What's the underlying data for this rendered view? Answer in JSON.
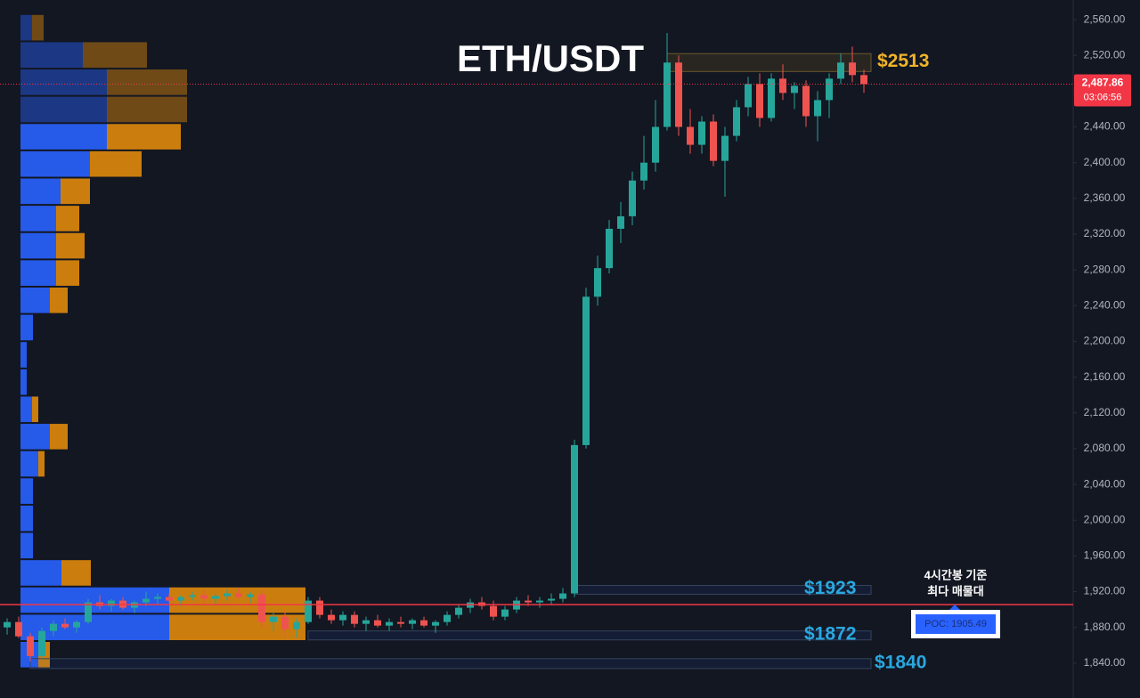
{
  "chart_data": {
    "type": "candlestick",
    "title": "ETH/USDT",
    "up_color": "#26a69a",
    "down_color": "#ef5350",
    "ylim": [
      1801,
      2582
    ],
    "yticks": [
      {
        "value": 1840,
        "label": "1,840.00"
      },
      {
        "value": 1880,
        "label": "1,880.00"
      },
      {
        "value": 1920,
        "label": "1,920.00"
      },
      {
        "value": 1960,
        "label": "1,960.00"
      },
      {
        "value": 2000,
        "label": "2,000.00"
      },
      {
        "value": 2040,
        "label": "2,040.00"
      },
      {
        "value": 2080,
        "label": "2,080.00"
      },
      {
        "value": 2120,
        "label": "2,120.00"
      },
      {
        "value": 2160,
        "label": "2,160.00"
      },
      {
        "value": 2200,
        "label": "2,200.00"
      },
      {
        "value": 2240,
        "label": "2,240.00"
      },
      {
        "value": 2280,
        "label": "2,280.00"
      },
      {
        "value": 2320,
        "label": "2,320.00"
      },
      {
        "value": 2360,
        "label": "2,360.00"
      },
      {
        "value": 2400,
        "label": "2,400.00"
      },
      {
        "value": 2440,
        "label": "2,440.00"
      },
      {
        "value": 2480,
        "label": "2,480.00"
      },
      {
        "value": 2520,
        "label": "2,520.00"
      },
      {
        "value": 2560,
        "label": "2,560.00"
      }
    ],
    "grid": false,
    "ohlc": [
      [
        1880,
        1890,
        1872,
        1886
      ],
      [
        1886,
        1892,
        1868,
        1870
      ],
      [
        1870,
        1874,
        1842,
        1848
      ],
      [
        1848,
        1880,
        1845,
        1876
      ],
      [
        1876,
        1888,
        1870,
        1884
      ],
      [
        1884,
        1890,
        1878,
        1880
      ],
      [
        1880,
        1888,
        1874,
        1886
      ],
      [
        1886,
        1912,
        1884,
        1908
      ],
      [
        1908,
        1916,
        1900,
        1904
      ],
      [
        1904,
        1912,
        1898,
        1910
      ],
      [
        1910,
        1914,
        1900,
        1902
      ],
      [
        1902,
        1910,
        1896,
        1908
      ],
      [
        1908,
        1920,
        1904,
        1912
      ],
      [
        1912,
        1918,
        1906,
        1914
      ],
      [
        1914,
        1918,
        1908,
        1910
      ],
      [
        1910,
        1916,
        1904,
        1914
      ],
      [
        1914,
        1920,
        1910,
        1916
      ],
      [
        1916,
        1922,
        1908,
        1912
      ],
      [
        1912,
        1918,
        1906,
        1915
      ],
      [
        1915,
        1922,
        1910,
        1918
      ],
      [
        1918,
        1924,
        1912,
        1914
      ],
      [
        1914,
        1920,
        1908,
        1917
      ],
      [
        1917,
        1922,
        1880,
        1886
      ],
      [
        1886,
        1896,
        1876,
        1892
      ],
      [
        1892,
        1898,
        1870,
        1878
      ],
      [
        1878,
        1890,
        1868,
        1886
      ],
      [
        1886,
        1914,
        1884,
        1910
      ],
      [
        1910,
        1914,
        1890,
        1894
      ],
      [
        1894,
        1900,
        1884,
        1888
      ],
      [
        1888,
        1898,
        1882,
        1894
      ],
      [
        1894,
        1898,
        1880,
        1884
      ],
      [
        1884,
        1892,
        1876,
        1888
      ],
      [
        1888,
        1894,
        1880,
        1882
      ],
      [
        1882,
        1890,
        1876,
        1886
      ],
      [
        1886,
        1892,
        1880,
        1884
      ],
      [
        1884,
        1890,
        1878,
        1888
      ],
      [
        1888,
        1892,
        1880,
        1882
      ],
      [
        1882,
        1888,
        1874,
        1886
      ],
      [
        1886,
        1898,
        1882,
        1894
      ],
      [
        1894,
        1906,
        1890,
        1902
      ],
      [
        1902,
        1912,
        1896,
        1908
      ],
      [
        1908,
        1914,
        1900,
        1904
      ],
      [
        1904,
        1910,
        1888,
        1892
      ],
      [
        1892,
        1904,
        1888,
        1900
      ],
      [
        1900,
        1914,
        1896,
        1910
      ],
      [
        1910,
        1916,
        1904,
        1908
      ],
      [
        1908,
        1914,
        1902,
        1910
      ],
      [
        1910,
        1918,
        1906,
        1912
      ],
      [
        1912,
        1924,
        1908,
        1918
      ],
      [
        1918,
        2090,
        1914,
        2084
      ],
      [
        2084,
        2260,
        2080,
        2250
      ],
      [
        2250,
        2296,
        2240,
        2282
      ],
      [
        2282,
        2336,
        2276,
        2326
      ],
      [
        2326,
        2356,
        2310,
        2340
      ],
      [
        2340,
        2390,
        2330,
        2380
      ],
      [
        2380,
        2430,
        2370,
        2400
      ],
      [
        2400,
        2470,
        2390,
        2440
      ],
      [
        2440,
        2545,
        2436,
        2512
      ],
      [
        2512,
        2520,
        2430,
        2440
      ],
      [
        2440,
        2460,
        2410,
        2420
      ],
      [
        2420,
        2452,
        2410,
        2446
      ],
      [
        2446,
        2454,
        2396,
        2402
      ],
      [
        2402,
        2440,
        2362,
        2430
      ],
      [
        2430,
        2470,
        2424,
        2462
      ],
      [
        2462,
        2496,
        2452,
        2488
      ],
      [
        2488,
        2500,
        2440,
        2450
      ],
      [
        2450,
        2500,
        2446,
        2494
      ],
      [
        2494,
        2510,
        2470,
        2478
      ],
      [
        2478,
        2490,
        2460,
        2486
      ],
      [
        2486,
        2492,
        2440,
        2452
      ],
      [
        2452,
        2480,
        2424,
        2470
      ],
      [
        2470,
        2500,
        2450,
        2494
      ],
      [
        2494,
        2522,
        2488,
        2512
      ],
      [
        2512,
        2530,
        2490,
        2498
      ],
      [
        2498,
        2504,
        2478,
        2487.86
      ]
    ],
    "profile": {
      "levels": [
        2551,
        2520.5,
        2490,
        2459.5,
        2429,
        2398.5,
        2368,
        2337.5,
        2307,
        2276.5,
        2246,
        2215.5,
        2185,
        2154.5,
        2124,
        2093.5,
        2063,
        2032.5,
        2002,
        1971.5,
        1941,
        1910.5,
        1880,
        1849.5
      ],
      "series": [
        {
          "name": "buy",
          "color": "#2962ff",
          "values": [
            13,
            70,
            97,
            97,
            97,
            78,
            45,
            40,
            40,
            40,
            33,
            14,
            7,
            7,
            13,
            33,
            20,
            14,
            14,
            14,
            46,
            167,
            167,
            20
          ]
        },
        {
          "name": "sell",
          "color": "#e08a0b",
          "values": [
            13,
            72,
            90,
            90,
            83,
            58,
            33,
            26,
            32,
            26,
            20,
            0,
            0,
            0,
            7,
            20,
            7,
            0,
            0,
            0,
            33,
            153,
            153,
            13
          ]
        }
      ]
    },
    "zones": [
      {
        "label": "$2513",
        "value": 2513,
        "low": 2502,
        "high": 2522,
        "color": "#f0b429"
      },
      {
        "label": "$1923",
        "value": 1923,
        "low": 1917,
        "high": 1927,
        "color": "#29a8e0"
      },
      {
        "label": "$1872",
        "value": 1872,
        "low": 1866,
        "high": 1876,
        "color": "#29a8e0"
      },
      {
        "label": "$1840",
        "value": 1840,
        "low": 1834,
        "high": 1845,
        "color": "#29a8e0"
      }
    ],
    "poc": {
      "value": 1905.49,
      "label": "POC: 1905.49",
      "color": "#f23645"
    },
    "annotation": [
      "4시간봉 기준",
      "최다 매물대"
    ],
    "last_price": {
      "value": 2487.86,
      "label": "2,487.86"
    },
    "countdown": "03:06:56"
  }
}
